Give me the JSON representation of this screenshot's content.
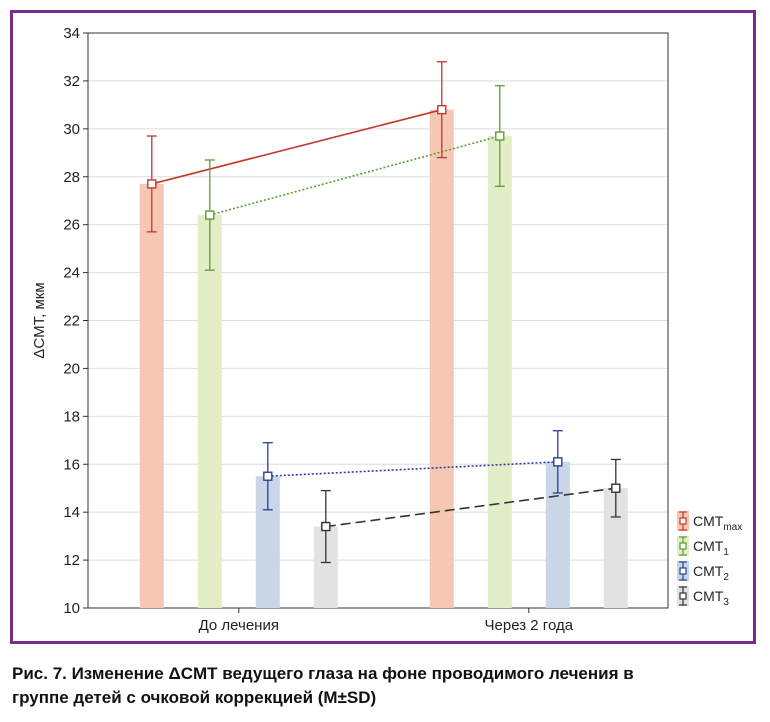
{
  "caption": {
    "line1": "Рис. 7. Изменение ΔCMT ведущего глаза на фоне проводимого лечения в",
    "line2": "группе детей с очковой коррекцией (M±SD)"
  },
  "chart_data": {
    "type": "bar",
    "ylabel": "ΔCMT, мкм",
    "ylim": [
      10,
      34
    ],
    "yticks": [
      "10",
      "12",
      "14",
      "16",
      "18",
      "20",
      "22",
      "24",
      "26",
      "28",
      "30",
      "32",
      "34"
    ],
    "categories": [
      "До лечения",
      "Через 2 года"
    ],
    "grid": true,
    "legend_position": "right",
    "series": [
      {
        "name": "CMT",
        "sub": "max",
        "color": "#c0392b",
        "fill": "#f6c8b3",
        "line": "solid",
        "values": [
          27.7,
          30.8
        ],
        "sd": [
          2.0,
          2.0
        ]
      },
      {
        "name": "CMT",
        "sub": "1",
        "color": "#5aa02c",
        "fill": "#e3edc8",
        "line": "dotted",
        "values": [
          26.4,
          29.7
        ],
        "sd": [
          2.3,
          2.1
        ]
      },
      {
        "name": "CMT",
        "sub": "2",
        "color": "#2a3f9d",
        "fill": "#c8d6e8",
        "line": "dotted",
        "values": [
          15.5,
          16.1
        ],
        "sd": [
          1.4,
          1.3
        ]
      },
      {
        "name": "CMT",
        "sub": "3",
        "color": "#333333",
        "fill": "#e2e2e2",
        "line": "dashed",
        "values": [
          13.4,
          15.0
        ],
        "sd": [
          1.5,
          1.2
        ]
      }
    ]
  }
}
